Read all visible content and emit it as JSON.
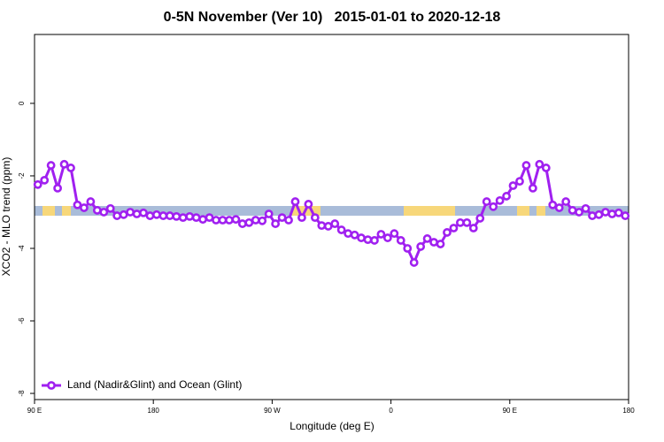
{
  "chart_data": {
    "type": "line",
    "title": "0-5N November (Ver 10)   2015-01-01 to 2020-12-18",
    "x_label": "Longitude (deg E)",
    "y_label": "XCO2 - MLO trend (ppm)",
    "x": [
      92.5,
      97.5,
      102.5,
      107.5,
      112.5,
      117.5,
      122.5,
      127.5,
      132.5,
      137.5,
      142.5,
      147.5,
      152.5,
      157.5,
      162.5,
      167.5,
      172.5,
      177.5,
      182.5,
      187.5,
      192.5,
      197.5,
      202.5,
      207.5,
      212.5,
      217.5,
      222.5,
      227.5,
      232.5,
      237.5,
      242.5,
      247.5,
      252.5,
      257.5,
      262.5,
      267.5,
      272.5,
      277.5,
      282.5,
      287.5,
      292.5,
      297.5,
      302.5,
      307.5,
      312.5,
      317.5,
      322.5,
      327.5,
      332.5,
      337.5,
      342.5,
      347.5,
      352.5,
      357.5,
      362.5,
      367.5,
      372.5,
      377.5,
      382.5,
      387.5,
      392.5,
      397.5,
      402.5,
      407.5,
      412.5,
      417.5,
      422.5,
      427.5,
      432.5,
      437.5,
      442.5,
      447.5,
      452.5,
      457.5,
      462.5,
      467.5,
      472.5,
      477.5,
      482.5,
      487.5,
      492.5,
      497.5,
      502.5,
      507.5,
      512.5,
      517.5,
      522.5,
      527.5,
      532.5,
      537.5
    ],
    "series": [
      {
        "name": "Land (Nadir&Glint) and Ocean (Glint)",
        "color": "#a020f0",
        "values": [
          -2.24,
          -2.12,
          -1.71,
          -2.34,
          -1.68,
          -1.78,
          -2.8,
          -2.88,
          -2.71,
          -2.95,
          -3.0,
          -2.9,
          -3.1,
          -3.07,
          -3.0,
          -3.05,
          -3.02,
          -3.1,
          -3.07,
          -3.1,
          -3.1,
          -3.12,
          -3.15,
          -3.12,
          -3.15,
          -3.2,
          -3.15,
          -3.22,
          -3.22,
          -3.22,
          -3.2,
          -3.32,
          -3.29,
          -3.22,
          -3.24,
          -3.05,
          -3.32,
          -3.15,
          -3.22,
          -2.71,
          -3.15,
          -2.78,
          -3.15,
          -3.37,
          -3.39,
          -3.32,
          -3.49,
          -3.59,
          -3.63,
          -3.71,
          -3.76,
          -3.78,
          -3.61,
          -3.71,
          -3.59,
          -3.78,
          -4.0,
          -4.39,
          -3.95,
          -3.73,
          -3.83,
          -3.88,
          -3.56,
          -3.44,
          -3.29,
          -3.29,
          -3.44,
          -3.17,
          -2.71,
          -2.85,
          -2.68,
          -2.56,
          -2.27,
          -2.15,
          -1.71,
          -2.34,
          -1.68,
          -1.78,
          -2.8,
          -2.88,
          -2.71,
          -2.95,
          -3.0,
          -2.9,
          -3.1,
          -3.07,
          -3.0,
          -3.05,
          -3.02,
          -3.1
        ]
      }
    ],
    "xlim": [
      90,
      540
    ],
    "xticks": [
      {
        "value": 90,
        "label": "90 E"
      },
      180,
      {
        "value": 270,
        "label": "90 W"
      },
      {
        "value": 360,
        "label": "0"
      },
      {
        "value": 450,
        "label": "90 E"
      },
      {
        "value": 540,
        "label": "180"
      }
    ],
    "ylim": [
      -8.17,
      1.9
    ],
    "yticks": [
      -8,
      -6,
      -4,
      -2,
      0
    ],
    "legend": "bottom-left",
    "grid": false
  }
}
